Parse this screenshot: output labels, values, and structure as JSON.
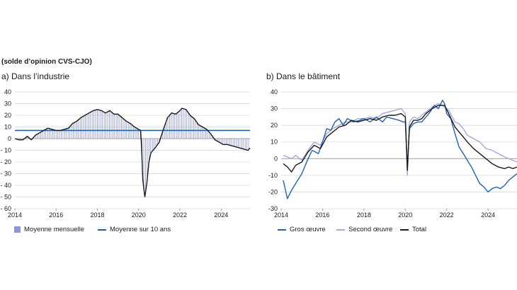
{
  "header": {
    "unit_note": "(solde d’opinion CVS-CJO)"
  },
  "colors": {
    "bar": "#8d97d2",
    "avg": "#1f5fa8",
    "line_black": "#1a1a1a",
    "gros": "#1f62b4",
    "second": "#a3a8dd",
    "total": "#1a1a1a",
    "grid": "#d6d6d6"
  },
  "chart_data": [
    {
      "id": "industrie",
      "type": "bar",
      "title": "a)  Dans l’industrie",
      "xlabel": "",
      "ylabel": "",
      "xlim": [
        2014,
        2025.4
      ],
      "ylim": [
        -60,
        40
      ],
      "xticks": [
        "2014",
        "2016",
        "2018",
        "2020",
        "2022",
        "2024"
      ],
      "yticks": [
        "40",
        "30",
        "20",
        "10",
        "0",
        "- 10",
        "- 20",
        "- 30",
        "- 40",
        "- 50",
        "- 60"
      ],
      "grid": true,
      "legend_position": "bottom",
      "series": [
        {
          "name": "Moyenne mensuelle",
          "kind": "bars+line",
          "points": [
            [
              2014.0,
              0
            ],
            [
              2014.2,
              -1
            ],
            [
              2014.4,
              -1
            ],
            [
              2014.6,
              2
            ],
            [
              2014.8,
              -1
            ],
            [
              2015.0,
              3
            ],
            [
              2015.2,
              5
            ],
            [
              2015.4,
              7
            ],
            [
              2015.6,
              9
            ],
            [
              2015.8,
              8
            ],
            [
              2016.0,
              7
            ],
            [
              2016.2,
              7
            ],
            [
              2016.4,
              8
            ],
            [
              2016.6,
              9
            ],
            [
              2016.8,
              13
            ],
            [
              2017.0,
              15
            ],
            [
              2017.2,
              18
            ],
            [
              2017.4,
              20
            ],
            [
              2017.6,
              22
            ],
            [
              2017.8,
              24
            ],
            [
              2018.0,
              25
            ],
            [
              2018.2,
              24
            ],
            [
              2018.4,
              22
            ],
            [
              2018.6,
              24
            ],
            [
              2018.8,
              21
            ],
            [
              2019.0,
              21
            ],
            [
              2019.2,
              18
            ],
            [
              2019.4,
              15
            ],
            [
              2019.6,
              13
            ],
            [
              2019.8,
              10
            ],
            [
              2020.0,
              8
            ],
            [
              2020.1,
              7
            ],
            [
              2020.15,
              -10
            ],
            [
              2020.2,
              -35
            ],
            [
              2020.3,
              -50
            ],
            [
              2020.4,
              -38
            ],
            [
              2020.5,
              -20
            ],
            [
              2020.6,
              -12
            ],
            [
              2020.8,
              -8
            ],
            [
              2021.0,
              -3
            ],
            [
              2021.2,
              8
            ],
            [
              2021.4,
              18
            ],
            [
              2021.6,
              22
            ],
            [
              2021.8,
              21
            ],
            [
              2022.0,
              24
            ],
            [
              2022.1,
              26
            ],
            [
              2022.3,
              25
            ],
            [
              2022.5,
              20
            ],
            [
              2022.7,
              17
            ],
            [
              2022.9,
              12
            ],
            [
              2023.1,
              10
            ],
            [
              2023.3,
              8
            ],
            [
              2023.5,
              4
            ],
            [
              2023.7,
              -1
            ],
            [
              2023.9,
              -3
            ],
            [
              2024.1,
              -5
            ],
            [
              2024.3,
              -5
            ],
            [
              2024.5,
              -6
            ],
            [
              2024.7,
              -7
            ],
            [
              2024.9,
              -8
            ],
            [
              2025.1,
              -9
            ],
            [
              2025.3,
              -10
            ],
            [
              2025.4,
              -8
            ]
          ]
        },
        {
          "name": "Moyenne sur 10 ans",
          "kind": "hline",
          "value": 7
        }
      ]
    },
    {
      "id": "batiment",
      "type": "line",
      "title": "b)  Dans le bâtiment",
      "xlabel": "",
      "ylabel": "",
      "xlim": [
        2014,
        2025.4
      ],
      "ylim": [
        -30,
        40
      ],
      "xticks": [
        "2014",
        "2016",
        "2018",
        "2020",
        "2022",
        "2024"
      ],
      "yticks": [
        "40",
        "30",
        "20",
        "10",
        "0",
        "-10",
        "-20",
        "-30"
      ],
      "grid": true,
      "legend_position": "bottom",
      "series": [
        {
          "name": "Gros œuvre",
          "points": [
            [
              2014.1,
              -13
            ],
            [
              2014.3,
              -24
            ],
            [
              2014.5,
              -19
            ],
            [
              2014.7,
              -15
            ],
            [
              2015.0,
              -9
            ],
            [
              2015.3,
              0
            ],
            [
              2015.5,
              5
            ],
            [
              2015.8,
              3
            ],
            [
              2016.0,
              10
            ],
            [
              2016.2,
              18
            ],
            [
              2016.4,
              17
            ],
            [
              2016.6,
              22
            ],
            [
              2016.8,
              24
            ],
            [
              2017.0,
              20
            ],
            [
              2017.2,
              24
            ],
            [
              2017.5,
              22
            ],
            [
              2017.8,
              23
            ],
            [
              2018.0,
              24
            ],
            [
              2018.3,
              22
            ],
            [
              2018.6,
              25
            ],
            [
              2018.9,
              22
            ],
            [
              2019.1,
              25
            ],
            [
              2019.4,
              24
            ],
            [
              2019.7,
              23
            ],
            [
              2019.9,
              22
            ],
            [
              2020.0,
              22
            ],
            [
              2020.1,
              -5
            ],
            [
              2020.2,
              18
            ],
            [
              2020.4,
              21
            ],
            [
              2020.6,
              22
            ],
            [
              2020.8,
              22
            ],
            [
              2021.0,
              25
            ],
            [
              2021.2,
              28
            ],
            [
              2021.4,
              32
            ],
            [
              2021.6,
              30
            ],
            [
              2021.8,
              35
            ],
            [
              2021.9,
              33
            ],
            [
              2022.0,
              27
            ],
            [
              2022.2,
              24
            ],
            [
              2022.4,
              15
            ],
            [
              2022.6,
              7
            ],
            [
              2022.8,
              3
            ],
            [
              2023.0,
              -1
            ],
            [
              2023.2,
              -5
            ],
            [
              2023.4,
              -10
            ],
            [
              2023.6,
              -15
            ],
            [
              2023.8,
              -17
            ],
            [
              2024.0,
              -20
            ],
            [
              2024.2,
              -18
            ],
            [
              2024.4,
              -17
            ],
            [
              2024.6,
              -18
            ],
            [
              2024.8,
              -16
            ],
            [
              2025.0,
              -13
            ],
            [
              2025.2,
              -11
            ],
            [
              2025.4,
              -9
            ]
          ]
        },
        {
          "name": "Second œuvre",
          "points": [
            [
              2014.1,
              2
            ],
            [
              2014.3,
              1
            ],
            [
              2014.5,
              0
            ],
            [
              2014.7,
              2
            ],
            [
              2015.0,
              -1
            ],
            [
              2015.3,
              5
            ],
            [
              2015.6,
              10
            ],
            [
              2015.9,
              8
            ],
            [
              2016.2,
              15
            ],
            [
              2016.5,
              18
            ],
            [
              2016.8,
              20
            ],
            [
              2017.1,
              22
            ],
            [
              2017.4,
              22
            ],
            [
              2017.7,
              24
            ],
            [
              2018.0,
              24
            ],
            [
              2018.3,
              25
            ],
            [
              2018.6,
              24
            ],
            [
              2018.9,
              27
            ],
            [
              2019.2,
              28
            ],
            [
              2019.5,
              29
            ],
            [
              2019.8,
              30
            ],
            [
              2020.0,
              27
            ],
            [
              2020.1,
              -10
            ],
            [
              2020.2,
              22
            ],
            [
              2020.4,
              25
            ],
            [
              2020.6,
              24
            ],
            [
              2020.8,
              26
            ],
            [
              2021.0,
              28
            ],
            [
              2021.3,
              31
            ],
            [
              2021.6,
              33
            ],
            [
              2021.9,
              31
            ],
            [
              2022.1,
              29
            ],
            [
              2022.4,
              22
            ],
            [
              2022.6,
              21
            ],
            [
              2022.8,
              18
            ],
            [
              2023.0,
              14
            ],
            [
              2023.3,
              12
            ],
            [
              2023.6,
              10
            ],
            [
              2023.9,
              6
            ],
            [
              2024.2,
              5
            ],
            [
              2024.5,
              3
            ],
            [
              2024.8,
              1
            ],
            [
              2025.0,
              0
            ],
            [
              2025.2,
              -1
            ],
            [
              2025.4,
              -2
            ]
          ]
        },
        {
          "name": "Total",
          "points": [
            [
              2014.1,
              -3
            ],
            [
              2014.3,
              -5
            ],
            [
              2014.5,
              -8
            ],
            [
              2014.7,
              -4
            ],
            [
              2015.0,
              -2
            ],
            [
              2015.3,
              4
            ],
            [
              2015.6,
              8
            ],
            [
              2015.9,
              6
            ],
            [
              2016.2,
              13
            ],
            [
              2016.5,
              16
            ],
            [
              2016.8,
              19
            ],
            [
              2017.1,
              20
            ],
            [
              2017.4,
              23
            ],
            [
              2017.7,
              22
            ],
            [
              2018.0,
              23
            ],
            [
              2018.3,
              24
            ],
            [
              2018.6,
              23
            ],
            [
              2018.9,
              25
            ],
            [
              2019.2,
              26
            ],
            [
              2019.5,
              26
            ],
            [
              2019.8,
              27
            ],
            [
              2020.0,
              25
            ],
            [
              2020.1,
              -7
            ],
            [
              2020.2,
              19
            ],
            [
              2020.4,
              23
            ],
            [
              2020.6,
              23
            ],
            [
              2020.8,
              24
            ],
            [
              2021.0,
              27
            ],
            [
              2021.3,
              30
            ],
            [
              2021.6,
              32
            ],
            [
              2021.9,
              32
            ],
            [
              2022.1,
              27
            ],
            [
              2022.4,
              19
            ],
            [
              2022.6,
              16
            ],
            [
              2022.8,
              13
            ],
            [
              2023.0,
              10
            ],
            [
              2023.3,
              6
            ],
            [
              2023.6,
              3
            ],
            [
              2023.9,
              0
            ],
            [
              2024.2,
              -3
            ],
            [
              2024.5,
              -5
            ],
            [
              2024.8,
              -6
            ],
            [
              2025.0,
              -5
            ],
            [
              2025.2,
              -6
            ],
            [
              2025.4,
              -5
            ]
          ]
        }
      ]
    }
  ]
}
